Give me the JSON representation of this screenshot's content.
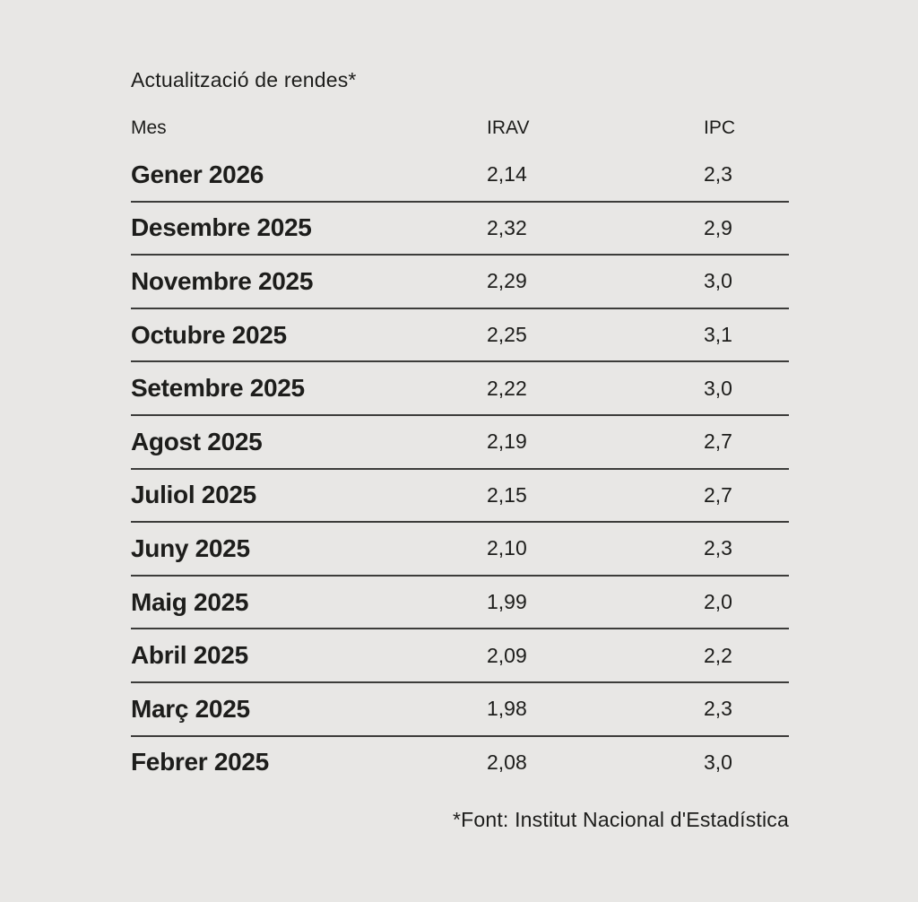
{
  "page": {
    "background_color": "#e8e7e5",
    "text_color": "#1d1d1b",
    "rule_color": "#3c3c3a"
  },
  "title": "Actualització de rendes*",
  "table": {
    "headers": {
      "mes": "Mes",
      "irav": "IRAV",
      "ipc": "IPC"
    },
    "rows": [
      {
        "month": "Gener 2026",
        "irav": "2,14",
        "ipc": "2,3"
      },
      {
        "month": "Desembre 2025",
        "irav": "2,32",
        "ipc": "2,9"
      },
      {
        "month": "Novembre 2025",
        "irav": "2,29",
        "ipc": "3,0"
      },
      {
        "month": "Octubre 2025",
        "irav": "2,25",
        "ipc": "3,1"
      },
      {
        "month": "Setembre 2025",
        "irav": "2,22",
        "ipc": "3,0"
      },
      {
        "month": "Agost 2025",
        "irav": "2,19",
        "ipc": "2,7"
      },
      {
        "month": "Juliol 2025",
        "irav": "2,15",
        "ipc": "2,7"
      },
      {
        "month": "Juny 2025",
        "irav": "2,10",
        "ipc": "2,3"
      },
      {
        "month": "Maig 2025",
        "irav": "1,99",
        "ipc": "2,0"
      },
      {
        "month": "Abril 2025",
        "irav": "2,09",
        "ipc": "2,2"
      },
      {
        "month": "Març 2025",
        "irav": "1,98",
        "ipc": "2,3"
      },
      {
        "month": "Febrer 2025",
        "irav": "2,08",
        "ipc": "3,0"
      }
    ]
  },
  "footer": "*Font: Institut Nacional d'Estadística",
  "chart_data": {
    "type": "table",
    "title": "Actualització de rendes*",
    "columns": [
      "Mes",
      "IRAV",
      "IPC"
    ],
    "rows": [
      [
        "Gener 2026",
        2.14,
        2.3
      ],
      [
        "Desembre 2025",
        2.32,
        2.9
      ],
      [
        "Novembre 2025",
        2.29,
        3.0
      ],
      [
        "Octubre 2025",
        2.25,
        3.1
      ],
      [
        "Setembre 2025",
        2.22,
        3.0
      ],
      [
        "Agost 2025",
        2.19,
        2.7
      ],
      [
        "Juliol 2025",
        2.15,
        2.7
      ],
      [
        "Juny 2025",
        2.1,
        2.3
      ],
      [
        "Maig 2025",
        1.99,
        2.0
      ],
      [
        "Abril 2025",
        2.09,
        2.2
      ],
      [
        "Març 2025",
        1.98,
        2.3
      ],
      [
        "Febrer 2025",
        2.08,
        3.0
      ]
    ],
    "decimal_separator": ",",
    "footnote": "*Font: Institut Nacional d'Estadística"
  }
}
